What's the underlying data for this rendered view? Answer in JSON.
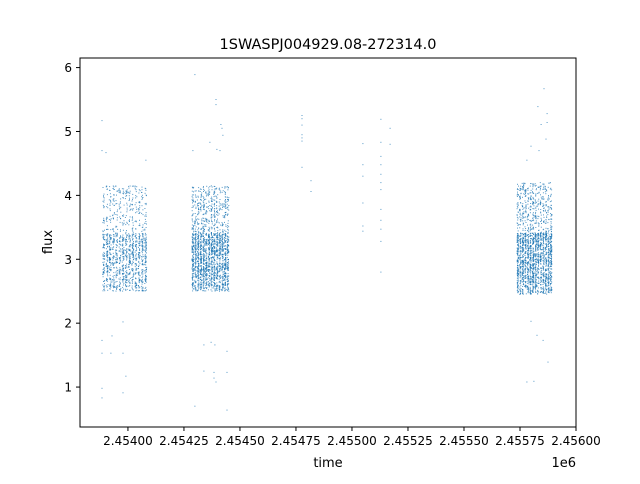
{
  "chart_data": {
    "type": "scatter",
    "title": "1SWASPJ004929.08-272314.0",
    "xlabel": "time",
    "ylabel": "flux",
    "x_offset_label": "1e6",
    "xlim": [
      2453786,
      2456000
    ],
    "ylim": [
      0.375,
      6.15
    ],
    "x_ticks": [
      2454000,
      2454250,
      2454500,
      2454750,
      2455000,
      2455250,
      2455500,
      2455750,
      2456000
    ],
    "x_tick_labels": [
      "2.45400",
      "2.45425",
      "2.45450",
      "2.45475",
      "2.45500",
      "2.45525",
      "2.45550",
      "2.45575",
      "2.45600"
    ],
    "y_ticks": [
      1,
      2,
      3,
      4,
      5,
      6
    ],
    "y_tick_labels": [
      "1",
      "2",
      "3",
      "4",
      "5",
      "6"
    ],
    "grid": false,
    "marker_color": "#1f77b4",
    "dense_bands": [
      {
        "time_range": [
          2453888,
          2454089
        ],
        "flux_range": [
          2.5,
          4.15
        ],
        "approx_points": 1300
      },
      {
        "time_range": [
          2454286,
          2454455
        ],
        "flux_range": [
          2.5,
          4.15
        ],
        "approx_points": 2000
      },
      {
        "time_range": [
          2455737,
          2455897
        ],
        "flux_range": [
          2.45,
          4.2
        ],
        "approx_points": 2000
      }
    ],
    "points": [
      [
        2453884,
        5.17
      ],
      [
        2453884,
        4.7
      ],
      [
        2453902,
        4.67
      ],
      [
        2453884,
        1.73
      ],
      [
        2453884,
        1.53
      ],
      [
        2453924,
        1.53
      ],
      [
        2453884,
        0.98
      ],
      [
        2453884,
        0.83
      ],
      [
        2453929,
        1.8
      ],
      [
        2453978,
        2.02
      ],
      [
        2453978,
        1.53
      ],
      [
        2453978,
        0.91
      ],
      [
        2453991,
        1.17
      ],
      [
        2454080,
        4.55
      ],
      [
        2454080,
        2.8
      ],
      [
        2454080,
        2.95
      ],
      [
        2454080,
        3.05
      ],
      [
        2454080,
        3.15
      ],
      [
        2454080,
        3.28
      ],
      [
        2454299,
        5.89
      ],
      [
        2454393,
        5.5
      ],
      [
        2454393,
        5.42
      ],
      [
        2454415,
        5.11
      ],
      [
        2454420,
        5.05
      ],
      [
        2454424,
        4.94
      ],
      [
        2454366,
        4.83
      ],
      [
        2454397,
        4.72
      ],
      [
        2454411,
        4.7
      ],
      [
        2454290,
        4.7
      ],
      [
        2454371,
        1.7
      ],
      [
        2454339,
        1.66
      ],
      [
        2454388,
        1.66
      ],
      [
        2454442,
        1.56
      ],
      [
        2454384,
        1.23
      ],
      [
        2454442,
        1.23
      ],
      [
        2454339,
        1.25
      ],
      [
        2454393,
        1.08
      ],
      [
        2454384,
        1.14
      ],
      [
        2454299,
        0.7
      ],
      [
        2454442,
        0.64
      ],
      [
        2454777,
        5.25
      ],
      [
        2454777,
        5.2
      ],
      [
        2454777,
        5.1
      ],
      [
        2454777,
        4.95
      ],
      [
        2454777,
        4.9
      ],
      [
        2454777,
        4.85
      ],
      [
        2454777,
        4.44
      ],
      [
        2454817,
        4.23
      ],
      [
        2454817,
        4.06
      ],
      [
        2455049,
        4.81
      ],
      [
        2455049,
        4.48
      ],
      [
        2455049,
        4.3
      ],
      [
        2455049,
        3.88
      ],
      [
        2455049,
        3.52
      ],
      [
        2455049,
        3.44
      ],
      [
        2455129,
        5.19
      ],
      [
        2455129,
        4.83
      ],
      [
        2455129,
        4.61
      ],
      [
        2455129,
        4.48
      ],
      [
        2455129,
        4.33
      ],
      [
        2455129,
        4.2
      ],
      [
        2455129,
        4.09
      ],
      [
        2455129,
        3.78
      ],
      [
        2455129,
        3.61
      ],
      [
        2455129,
        3.47
      ],
      [
        2455129,
        3.28
      ],
      [
        2455129,
        2.8
      ],
      [
        2455170,
        5.05
      ],
      [
        2455170,
        4.8
      ],
      [
        2455857,
        5.67
      ],
      [
        2455830,
        5.39
      ],
      [
        2455871,
        5.28
      ],
      [
        2455844,
        5.11
      ],
      [
        2455871,
        5.14
      ],
      [
        2455799,
        4.77
      ],
      [
        2455781,
        4.55
      ],
      [
        2455835,
        4.7
      ],
      [
        2455866,
        4.88
      ],
      [
        2455875,
        1.39
      ],
      [
        2455781,
        1.08
      ],
      [
        2455812,
        1.09
      ],
      [
        2455853,
        1.73
      ],
      [
        2455799,
        2.03
      ],
      [
        2455826,
        1.81
      ]
    ]
  }
}
